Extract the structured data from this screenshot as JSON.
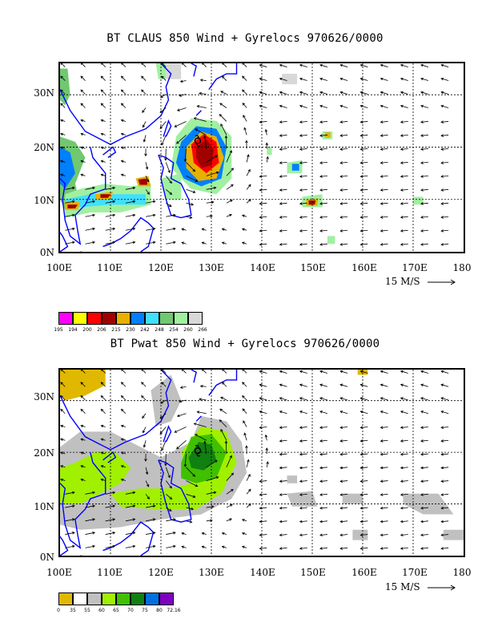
{
  "titles": {
    "top": "BT CLAUS 850 Wind + Gyrelocs 970626/0000",
    "bottom": "BT Pwat 850 Wind + Gyrelocs 970626/0000"
  },
  "axes": {
    "lat_labels": [
      "30N",
      "20N",
      "10N",
      "0N"
    ],
    "lon_labels": [
      "100E",
      "110E",
      "120E",
      "130E",
      "140E",
      "150E",
      "160E",
      "170E",
      "180"
    ],
    "lon_range": [
      100,
      180
    ],
    "lat_range": [
      0,
      36
    ],
    "grid": true
  },
  "scale_label": "15 M/S",
  "legend_top": {
    "labels": [
      "195",
      "194",
      "200",
      "206",
      "215",
      "230",
      "242",
      "248",
      "254",
      "260",
      "266"
    ],
    "colors": [
      "#ff00ff",
      "#ffff00",
      "#ff0000",
      "#a00000",
      "#e8b000",
      "#0080ff",
      "#40e0ff",
      "#70c870",
      "#a0f0a0",
      "#d8d8d8"
    ]
  },
  "legend_bottom": {
    "labels": [
      "0",
      "35",
      "55",
      "60",
      "65",
      "70",
      "75",
      "80",
      "72.16"
    ],
    "colors": [
      "#e0b800",
      "#ffffff",
      "#c0c0c0",
      "#a0f000",
      "#40c000",
      "#108010",
      "#0070e0",
      "#8000c0"
    ]
  },
  "colors": {
    "coast": "#0000ff",
    "grid": "#000000"
  },
  "gyreloc_marker": "cyclone-symbol"
}
